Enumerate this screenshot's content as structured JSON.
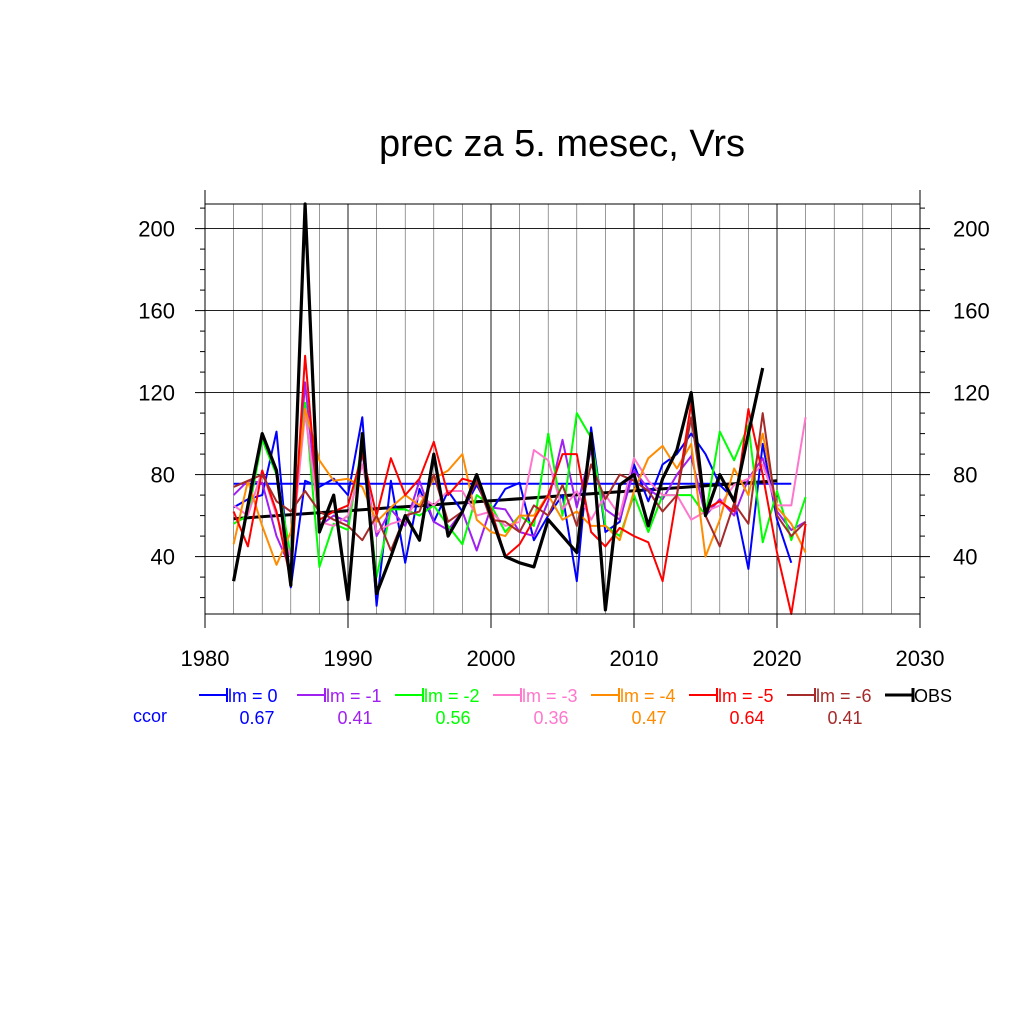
{
  "chart_data": {
    "type": "line",
    "title": "prec za 5. mesec, Vrs",
    "xlabel": "",
    "ylabel": "",
    "xlim": [
      1980,
      2030
    ],
    "ylim": [
      12,
      212
    ],
    "x_ticks": [
      1980,
      1990,
      2000,
      2010,
      2020,
      2030
    ],
    "y_ticks": [
      40,
      80,
      120,
      160,
      200
    ],
    "y_ticks_right": true,
    "grid": true,
    "legend_position": "bottom",
    "ccor_label": "ccor",
    "ccor_color": "#0000ff",
    "series": [
      {
        "name": "lm = 0",
        "color": "#0000ff",
        "ccor": "0.67",
        "x": [
          1982,
          1983,
          1984,
          1985,
          1986,
          1987,
          1988,
          1989,
          1990,
          1991,
          1992,
          1993,
          1994,
          1995,
          1996,
          1997,
          1998,
          1999,
          2000,
          2001,
          2002,
          2003,
          2004,
          2005,
          2006,
          2007,
          2008,
          2009,
          2010,
          2011,
          2012,
          2013,
          2014,
          2015,
          2016,
          2017,
          2018,
          2019,
          2020,
          2021
        ],
        "y": [
          64,
          68,
          70,
          101,
          25,
          77,
          74,
          78,
          70,
          108,
          16,
          77,
          37,
          73,
          57,
          72,
          62,
          75,
          62,
          73,
          76,
          48,
          60,
          70,
          28,
          103,
          52,
          57,
          85,
          67,
          85,
          90,
          100,
          90,
          75,
          68,
          34,
          95,
          58,
          37
        ]
      },
      {
        "name": "lm = -1",
        "color": "#a020f0",
        "ccor": "0.41",
        "x": [
          1982,
          1983,
          1984,
          1985,
          1986,
          1987,
          1988,
          1989,
          1990,
          1991,
          1992,
          1993,
          1994,
          1995,
          1996,
          1997,
          1998,
          1999,
          2000,
          2001,
          2002,
          2003,
          2004,
          2005,
          2006,
          2007,
          2008,
          2009,
          2010,
          2011,
          2012,
          2013,
          2014,
          2015,
          2016,
          2017,
          2018,
          2019,
          2020,
          2021,
          2022
        ],
        "y": [
          70,
          77,
          76,
          50,
          34,
          125,
          55,
          60,
          57,
          90,
          50,
          63,
          55,
          77,
          57,
          53,
          62,
          43,
          64,
          63,
          52,
          50,
          67,
          97,
          64,
          92,
          63,
          58,
          82,
          73,
          68,
          80,
          89,
          60,
          68,
          60,
          78,
          88,
          62,
          53,
          57
        ]
      },
      {
        "name": "lm = -2",
        "color": "#00ff00",
        "ccor": "0.56",
        "x": [
          1982,
          1983,
          1984,
          1985,
          1986,
          1987,
          1988,
          1989,
          1990,
          1991,
          1992,
          1993,
          1994,
          1995,
          1996,
          1997,
          1998,
          1999,
          2000,
          2001,
          2002,
          2003,
          2004,
          2005,
          2006,
          2007,
          2008,
          2009,
          2010,
          2011,
          2012,
          2013,
          2014,
          2015,
          2016,
          2017,
          2018,
          2019,
          2020,
          2021,
          2022
        ],
        "y": [
          56,
          60,
          97,
          80,
          40,
          115,
          35,
          56,
          53,
          96,
          30,
          63,
          63,
          60,
          65,
          55,
          46,
          70,
          65,
          52,
          60,
          55,
          100,
          60,
          110,
          98,
          55,
          50,
          70,
          52,
          70,
          70,
          70,
          60,
          101,
          87,
          104,
          47,
          72,
          48,
          69
        ]
      },
      {
        "name": "lm = -3",
        "color": "#ff77cc",
        "ccor": "0.36",
        "x": [
          1982,
          1983,
          1984,
          1985,
          1986,
          1987,
          1988,
          1989,
          1990,
          1991,
          1992,
          1993,
          1994,
          1995,
          1996,
          1997,
          1998,
          1999,
          2000,
          2001,
          2002,
          2003,
          2004,
          2005,
          2006,
          2007,
          2008,
          2009,
          2010,
          2011,
          2012,
          2013,
          2014,
          2015,
          2016,
          2017,
          2018,
          2019,
          2020,
          2021,
          2022
        ],
        "y": [
          65,
          60,
          82,
          60,
          40,
          110,
          57,
          55,
          60,
          85,
          52,
          56,
          58,
          70,
          65,
          72,
          72,
          60,
          62,
          55,
          57,
          92,
          87,
          63,
          72,
          58,
          70,
          60,
          88,
          77,
          70,
          70,
          58,
          62,
          65,
          75,
          78,
          85,
          65,
          65,
          108
        ]
      },
      {
        "name": "lm = -4",
        "color": "#ff8c00",
        "ccor": "0.47",
        "x": [
          1982,
          1983,
          1984,
          1985,
          1986,
          1987,
          1988,
          1989,
          1990,
          1991,
          1992,
          1993,
          1994,
          1995,
          1996,
          1997,
          1998,
          1999,
          2000,
          2001,
          2002,
          2003,
          2004,
          2005,
          2006,
          2007,
          2008,
          2009,
          2010,
          2011,
          2012,
          2013,
          2014,
          2015,
          2016,
          2017,
          2018,
          2019,
          2020,
          2021,
          2022
        ],
        "y": [
          46,
          77,
          55,
          36,
          52,
          112,
          87,
          77,
          78,
          74,
          57,
          64,
          70,
          65,
          78,
          82,
          90,
          58,
          52,
          50,
          60,
          60,
          70,
          58,
          62,
          55,
          55,
          48,
          72,
          88,
          94,
          83,
          95,
          40,
          58,
          83,
          70,
          100,
          64,
          56,
          42
        ]
      },
      {
        "name": "lm = -5",
        "color": "#ff0000",
        "ccor": "0.64",
        "x": [
          1982,
          1983,
          1984,
          1985,
          1986,
          1987,
          1988,
          1989,
          1990,
          1991,
          1992,
          1993,
          1994,
          1995,
          1996,
          1997,
          1998,
          1999,
          2000,
          2001,
          2002,
          2003,
          2004,
          2005,
          2006,
          2007,
          2008,
          2009,
          2010,
          2011,
          2012,
          2013,
          2014,
          2015,
          2016,
          2017,
          2018,
          2019,
          2020,
          2021,
          2022
        ],
        "y": [
          62,
          45,
          82,
          62,
          28,
          138,
          58,
          62,
          65,
          90,
          60,
          88,
          70,
          78,
          96,
          70,
          78,
          76,
          63,
          40,
          46,
          58,
          70,
          90,
          90,
          52,
          45,
          54,
          50,
          47,
          28,
          70,
          115,
          63,
          67,
          62,
          112,
          80,
          42,
          12,
          56
        ]
      },
      {
        "name": "lm = -6",
        "color": "#a52a2a",
        "ccor": "0.41",
        "x": [
          1982,
          1983,
          1984,
          1985,
          1986,
          1987,
          1988,
          1989,
          1990,
          1991,
          1992,
          1993,
          1994,
          1995,
          1996,
          1997,
          1998,
          1999,
          2000,
          2001,
          2002,
          2003,
          2004,
          2005,
          2006,
          2007,
          2008,
          2009,
          2010,
          2011,
          2012,
          2013,
          2014,
          2015,
          2016,
          2017,
          2018,
          2019,
          2020,
          2021,
          2022
        ],
        "y": [
          74,
          77,
          80,
          67,
          62,
          72,
          62,
          58,
          55,
          48,
          60,
          43,
          60,
          62,
          80,
          57,
          62,
          77,
          58,
          57,
          52,
          65,
          60,
          75,
          55,
          85,
          68,
          80,
          77,
          72,
          62,
          70,
          108,
          60,
          45,
          66,
          56,
          110,
          60,
          50,
          57
        ]
      },
      {
        "name": "OBS",
        "color": "#000000",
        "ccor": "",
        "x": [
          1982,
          1983,
          1984,
          1985,
          1986,
          1987,
          1988,
          1989,
          1990,
          1991,
          1992,
          1993,
          1994,
          1995,
          1996,
          1997,
          1998,
          1999,
          2000,
          2001,
          2002,
          2003,
          2004,
          2005,
          2006,
          2007,
          2008,
          2009,
          2010,
          2011,
          2012,
          2013,
          2014,
          2015,
          2016,
          2017,
          2018,
          2019
        ],
        "y": [
          28,
          65,
          100,
          82,
          26,
          212,
          52,
          70,
          19,
          100,
          22,
          40,
          60,
          48,
          90,
          50,
          62,
          80,
          60,
          40,
          37,
          35,
          58,
          50,
          42,
          100,
          14,
          75,
          80,
          55,
          78,
          92,
          120,
          60,
          80,
          67,
          100,
          132
        ]
      }
    ],
    "trend_lines": [
      {
        "series": "lm = 0",
        "color": "#0000ff",
        "x": [
          1982,
          2021
        ],
        "y": [
          75.5,
          75.5
        ]
      },
      {
        "series": "OBS",
        "color": "#000000",
        "x": [
          1982,
          2020
        ],
        "y": [
          58.5,
          77
        ]
      }
    ]
  }
}
